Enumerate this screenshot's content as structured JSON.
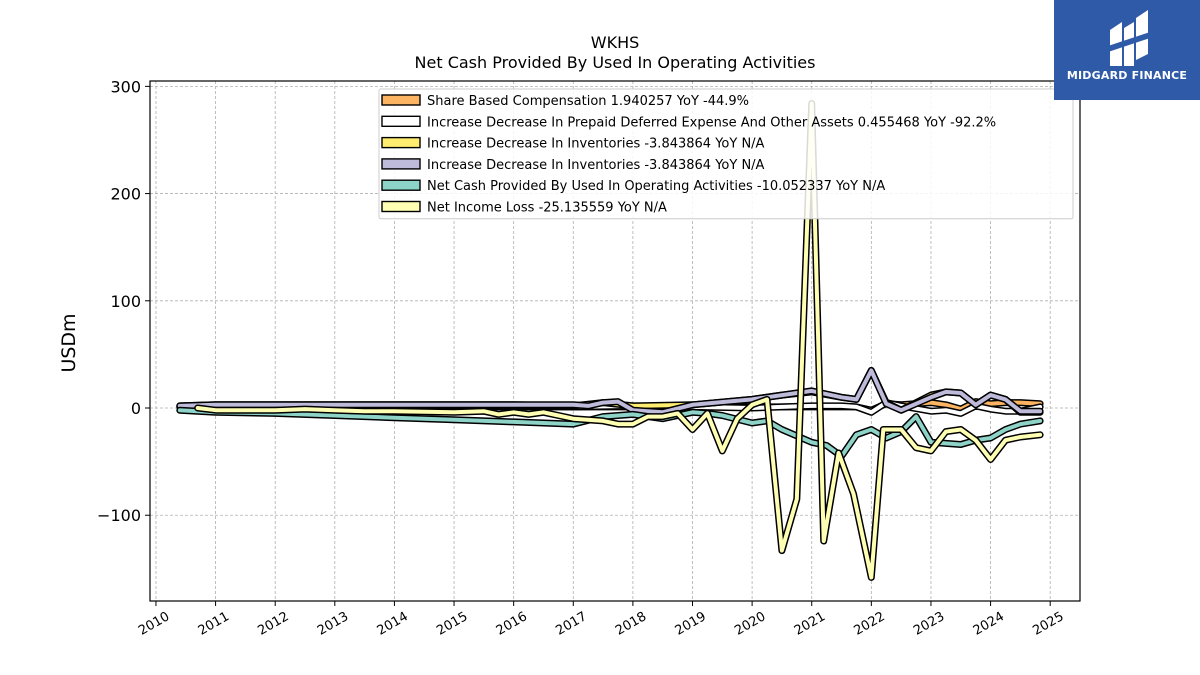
{
  "chart_data": {
    "type": "line",
    "title": "WKHS",
    "subtitle": "Net Cash Provided By Used In Operating Activities",
    "ylabel": "USDm",
    "xlabel": "",
    "xlim": [
      2009.9,
      2025.5
    ],
    "ylim": [
      -180,
      305
    ],
    "yticks": [
      -100,
      0,
      100,
      200,
      300
    ],
    "ytick_labels": [
      "−100",
      "0",
      "100",
      "200",
      "300"
    ],
    "xticks": [
      2010,
      2011,
      2012,
      2013,
      2014,
      2015,
      2016,
      2017,
      2018,
      2019,
      2020,
      2021,
      2022,
      2023,
      2024,
      2025
    ],
    "xtick_labels": [
      "2010",
      "2011",
      "2012",
      "2013",
      "2014",
      "2015",
      "2016",
      "2017",
      "2018",
      "2019",
      "2020",
      "2021",
      "2022",
      "2023",
      "2024",
      "2025"
    ],
    "grid": true,
    "legend_position": "top-center",
    "series": [
      {
        "name": "Share Based Compensation  1.940257 YoY -44.9%",
        "color": "#fdb462",
        "x": [
          2010.4,
          2011.0,
          2012.0,
          2013.0,
          2014.0,
          2015.0,
          2016.0,
          2017.0,
          2018.0,
          2019.0,
          2020.0,
          2020.5,
          2021.0,
          2021.5,
          2021.75,
          2022.0,
          2022.25,
          2022.5,
          2023.0,
          2023.25,
          2023.5,
          2023.75,
          2024.0,
          2024.25,
          2024.5,
          2024.83
        ],
        "values": [
          1,
          1,
          1,
          1,
          1,
          1,
          1,
          1,
          1,
          1,
          1,
          1,
          1,
          1,
          1,
          -2,
          4,
          3,
          5,
          3,
          -1,
          6,
          4,
          5,
          5,
          4
        ]
      },
      {
        "name": "Increase Decrease In Prepaid Deferred Expense And Other Assets  0.455468 YoY -92.2%",
        "color": "#ffffff",
        "x": [
          2010.4,
          2011.0,
          2012.0,
          2013.0,
          2014.0,
          2015.0,
          2016.0,
          2017.0,
          2018.0,
          2019.0,
          2020.0,
          2020.5,
          2021.0,
          2021.5,
          2021.75,
          2022.0,
          2022.25,
          2022.5,
          2023.0,
          2023.25,
          2023.5,
          2023.75,
          2024.0,
          2024.25,
          2024.5,
          2024.83
        ],
        "values": [
          1,
          2,
          2,
          2,
          2,
          2,
          2,
          1,
          2,
          1,
          0,
          1,
          2,
          2,
          1,
          -4,
          5,
          2,
          -3,
          -2,
          -5,
          2,
          -1,
          -3,
          -3,
          1
        ]
      },
      {
        "name": "Increase Decrease In Inventories  -3.843864 YoY N/A",
        "color": "#ffed6f",
        "x": [
          2010.4,
          2011.0,
          2012.0,
          2013.0,
          2014.0,
          2015.0,
          2016.0,
          2017.0,
          2017.5,
          2018.0,
          2019.0,
          2020.0,
          2020.5,
          2021.0,
          2021.5,
          2021.75,
          2022.0,
          2022.25,
          2022.5,
          2023.0,
          2023.25,
          2023.5,
          2023.75,
          2024.0,
          2024.25,
          2024.5,
          2024.83
        ],
        "values": [
          2,
          3,
          3,
          3,
          3,
          3,
          3,
          2,
          5,
          2,
          3,
          8,
          12,
          15,
          10,
          8,
          35,
          5,
          -2,
          12,
          15,
          14,
          3,
          12,
          8,
          -4,
          -4
        ]
      },
      {
        "name": "Increase Decrease In Inventories  -3.843864 YoY N/A",
        "color": "#bebada",
        "x": [
          2010.4,
          2011.0,
          2012.0,
          2013.0,
          2014.0,
          2015.0,
          2016.0,
          2017.0,
          2017.25,
          2017.5,
          2017.75,
          2018.0,
          2018.5,
          2019.0,
          2020.0,
          2020.5,
          2021.0,
          2021.5,
          2021.75,
          2022.0,
          2022.25,
          2022.5,
          2023.0,
          2023.25,
          2023.5,
          2023.75,
          2024.0,
          2024.25,
          2024.5,
          2024.83
        ],
        "values": [
          2,
          3,
          3,
          3,
          3,
          3,
          3,
          3,
          2,
          5,
          6,
          -2,
          -4,
          3,
          8,
          12,
          16,
          10,
          8,
          35,
          4,
          -2,
          10,
          15,
          14,
          3,
          12,
          8,
          -3,
          -3
        ]
      },
      {
        "name": "Net Cash Provided By Used In Operating Activities  -10.052337 YoY N/A",
        "color": "#8dd3c7",
        "x": [
          2010.4,
          2011.0,
          2012.0,
          2013.0,
          2014.0,
          2015.0,
          2016.0,
          2017.0,
          2017.5,
          2018.0,
          2018.5,
          2019.0,
          2019.25,
          2019.5,
          2020.0,
          2020.25,
          2020.5,
          2021.0,
          2021.25,
          2021.5,
          2021.75,
          2022.0,
          2022.25,
          2022.5,
          2022.75,
          2023.0,
          2023.25,
          2023.5,
          2023.75,
          2024.0,
          2024.25,
          2024.5,
          2024.83
        ],
        "values": [
          -2,
          -4,
          -5,
          -7,
          -9,
          -11,
          -13,
          -15,
          -8,
          -6,
          -10,
          -4,
          -5,
          -7,
          -14,
          -12,
          -20,
          -32,
          -35,
          -45,
          -25,
          -20,
          -28,
          -22,
          -8,
          -32,
          -33,
          -34,
          -30,
          -28,
          -20,
          -15,
          -12
        ]
      },
      {
        "name": "Net Income Loss  -25.135559 YoY N/A",
        "color": "#ffffb3",
        "x": [
          2010.7,
          2011.0,
          2012.0,
          2012.5,
          2013.0,
          2013.5,
          2014.0,
          2015.0,
          2015.5,
          2015.75,
          2016.0,
          2016.25,
          2016.5,
          2016.75,
          2017.0,
          2017.5,
          2017.75,
          2018.0,
          2018.25,
          2018.5,
          2018.75,
          2019.0,
          2019.25,
          2019.5,
          2019.75,
          2020.0,
          2020.25,
          2020.5,
          2020.75,
          2021.0,
          2021.2,
          2021.45,
          2021.7,
          2022.0,
          2022.2,
          2022.5,
          2022.75,
          2023.0,
          2023.25,
          2023.5,
          2023.75,
          2024.0,
          2024.25,
          2024.5,
          2024.83
        ],
        "values": [
          0,
          -2,
          -2,
          -1,
          -2,
          -3,
          -3,
          -4,
          -3,
          -6,
          -4,
          -6,
          -4,
          -7,
          -10,
          -12,
          -15,
          -15,
          -8,
          -8,
          -5,
          -20,
          -5,
          -40,
          -10,
          3,
          8,
          -133,
          -85,
          284,
          -124,
          -42,
          -80,
          -158,
          -20,
          -20,
          -37,
          -40,
          -22,
          -20,
          -30,
          -48,
          -30,
          -27,
          -25
        ]
      }
    ]
  },
  "logo": {
    "text": "MIDGARD FINANCE",
    "color": "#2f5aa7"
  }
}
